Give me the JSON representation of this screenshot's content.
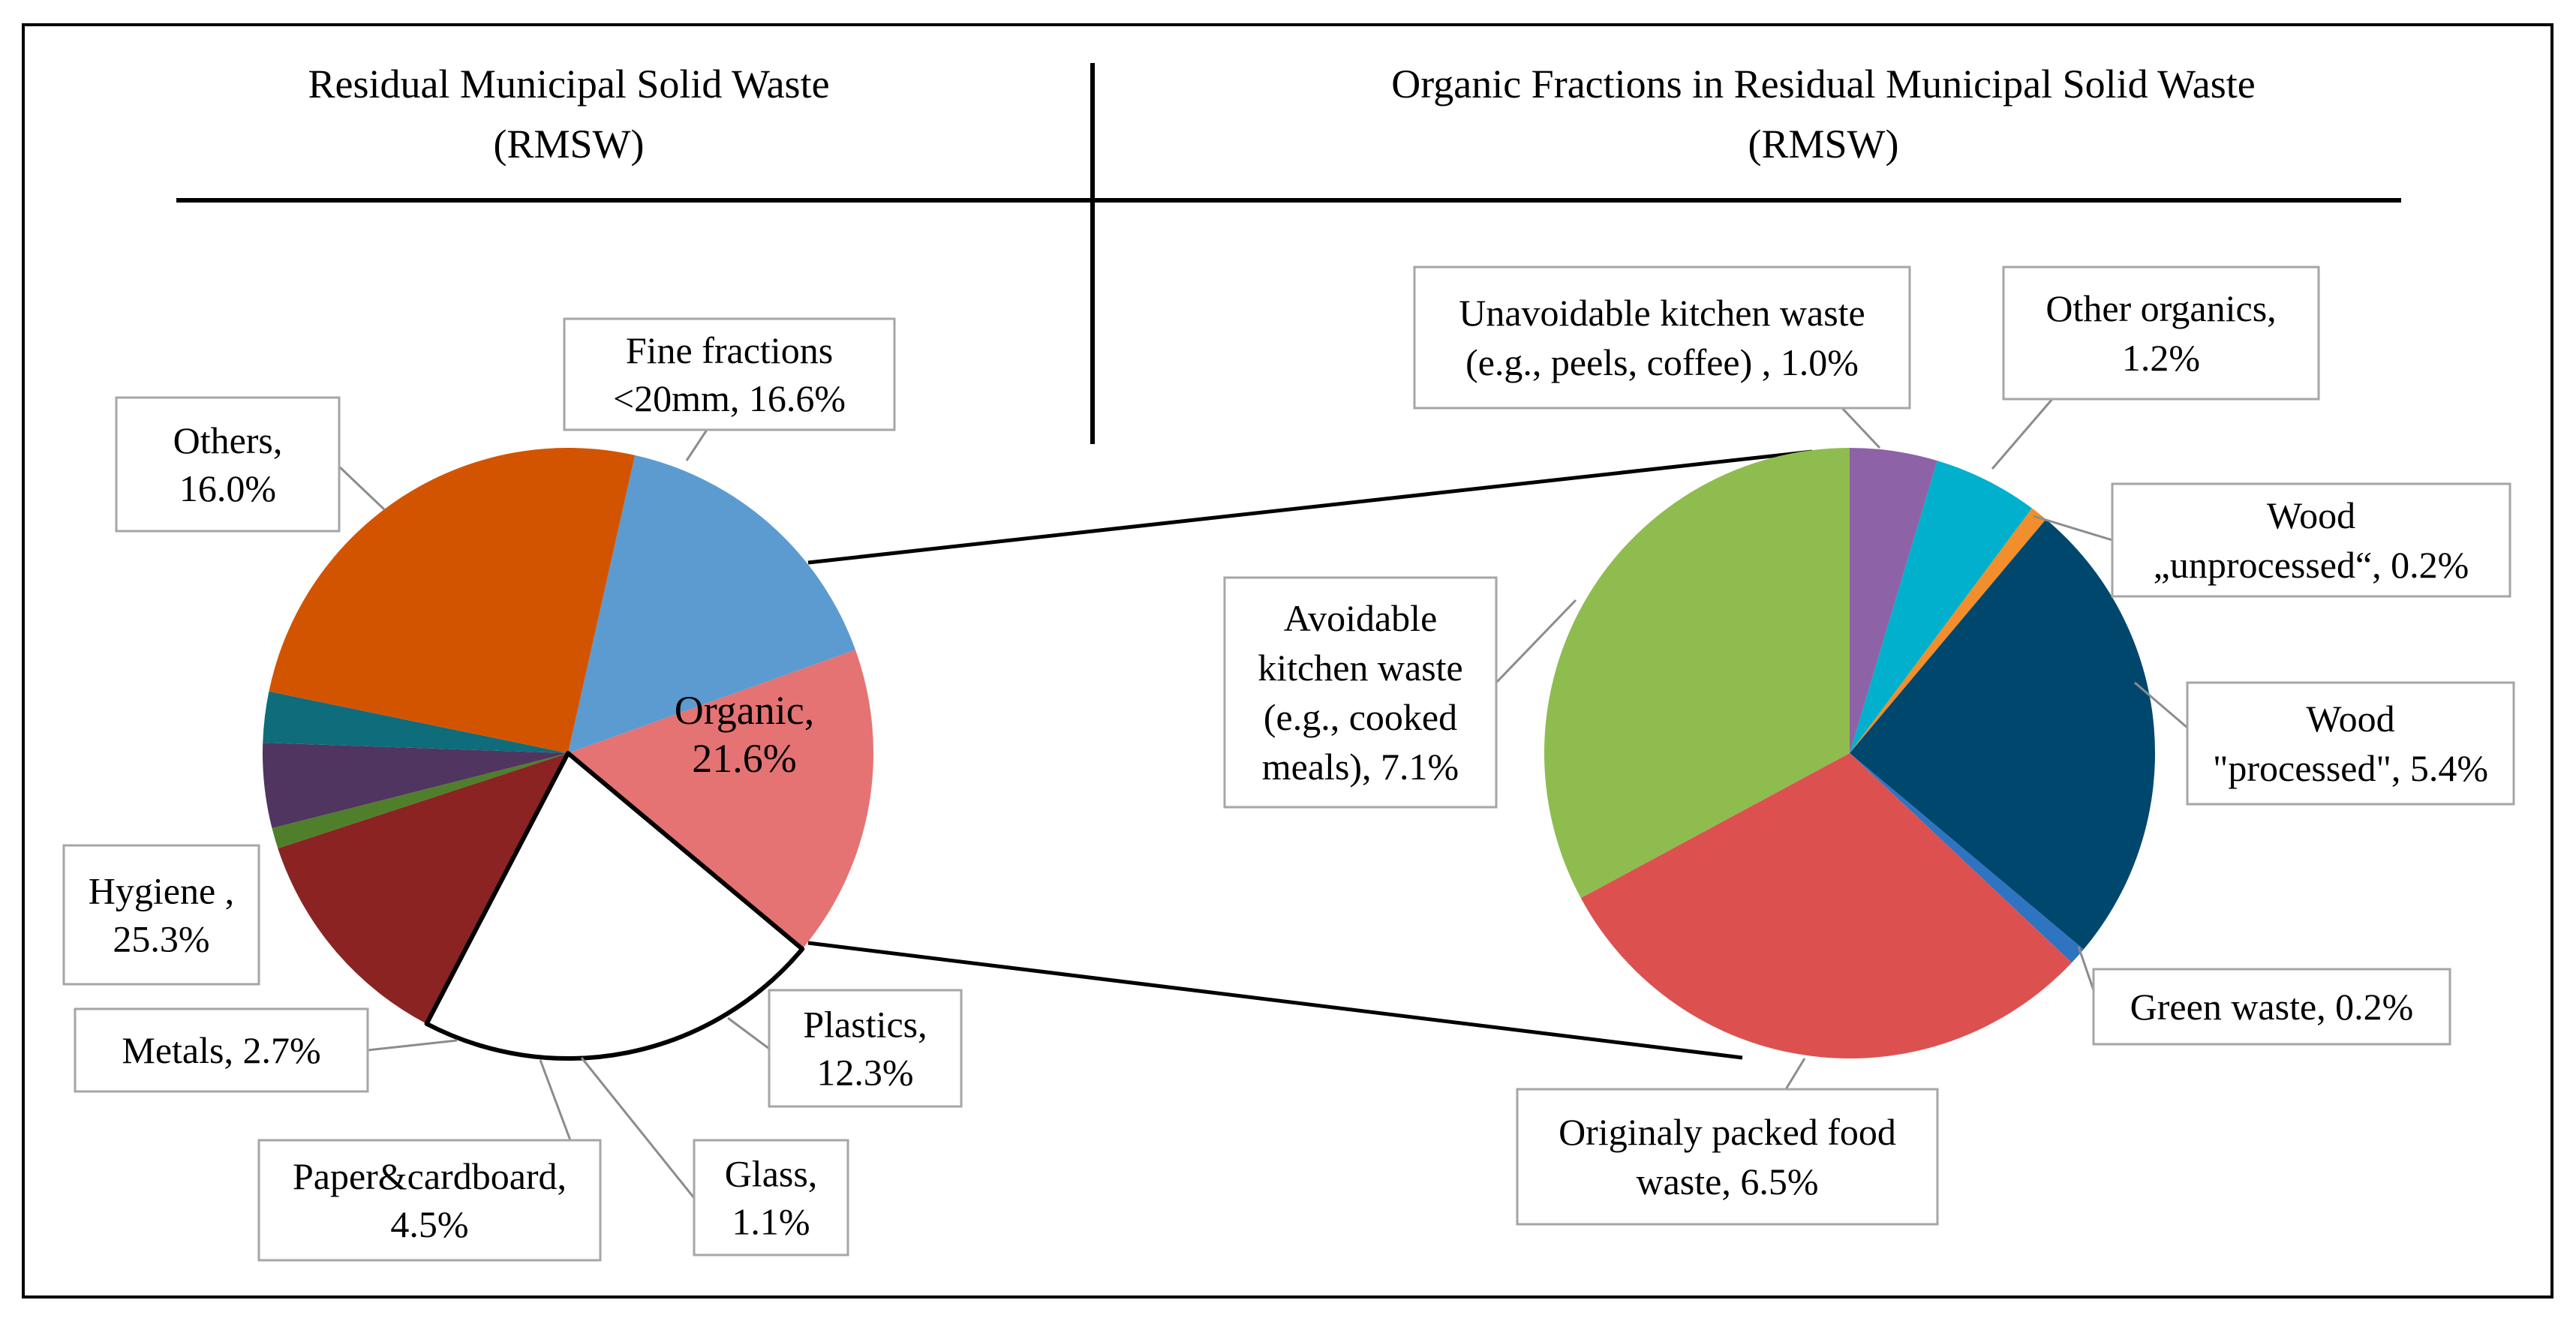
{
  "colors": {
    "frame": "#000000",
    "label_box_border": "#a6a6a6",
    "leader_line": "#8c8c8c"
  },
  "headers": {
    "left_line1": "Residual Municipal Solid Waste",
    "left_line2": "(RMSW)",
    "right_line1": "Organic Fractions in Residual Municipal Solid Waste",
    "right_line2": "(RMSW)"
  },
  "chart_data": [
    {
      "type": "pie",
      "title": "Residual Municipal Solid Waste (RMSW)",
      "slices": [
        {
          "key": "fine",
          "label": [
            "Fine fractions",
            "<20mm, 16.6%"
          ],
          "value": 16.6,
          "color": "#e57373"
        },
        {
          "key": "organic",
          "label": [
            "Organic,",
            "21.6%"
          ],
          "value": 21.6,
          "color": "#ffffff",
          "exploded_into_right_chart": true
        },
        {
          "key": "plastics",
          "label": [
            "Plastics,",
            "12.3%"
          ],
          "value": 12.3,
          "color": "#8b2323"
        },
        {
          "key": "glass",
          "label": [
            "Glass,",
            "1.1%"
          ],
          "value": 1.1,
          "color": "#4f7f2a"
        },
        {
          "key": "paper",
          "label": [
            "Paper&cardboard,",
            "4.5%"
          ],
          "value": 4.5,
          "color": "#503560"
        },
        {
          "key": "metals",
          "label": [
            "Metals, 2.7%"
          ],
          "value": 2.7,
          "color": "#0f6c7a"
        },
        {
          "key": "hygiene",
          "label": [
            "Hygiene ,",
            "25.3%"
          ],
          "value": 25.3,
          "color": "#d35400"
        },
        {
          "key": "others",
          "label": [
            "Others,",
            "16.0%"
          ],
          "value": 16.0,
          "color": "#5b9bd0"
        }
      ]
    },
    {
      "type": "pie",
      "title": "Organic Fractions in Residual Municipal Solid Waste (RMSW)",
      "slices": [
        {
          "key": "unavoidable",
          "label": [
            "Unavoidable kitchen waste",
            "(e.g., peels, coffee) , 1.0%"
          ],
          "value": 1.0,
          "color": "#8e62a6"
        },
        {
          "key": "other_organics",
          "label": [
            "Other organics,",
            "1.2%"
          ],
          "value": 1.2,
          "color": "#00b0cc"
        },
        {
          "key": "wood_unprocessed",
          "label": [
            "Wood",
            "„unprocessed“, 0.2%"
          ],
          "value": 0.2,
          "color": "#f28e2b"
        },
        {
          "key": "wood_processed",
          "label": [
            "Wood",
            "\"processed\", 5.4%"
          ],
          "value": 5.4,
          "color": "#00476e"
        },
        {
          "key": "green",
          "label": [
            "Green waste, 0.2%"
          ],
          "value": 0.2,
          "color": "#2e74c0"
        },
        {
          "key": "packed_food",
          "label": [
            "Originaly packed food",
            "waste, 6.5%"
          ],
          "value": 6.5,
          "color": "#dd5050"
        },
        {
          "key": "avoidable",
          "label": [
            "Avoidable",
            "kitchen waste",
            "(e.g., cooked",
            "meals), 7.1%"
          ],
          "value": 7.1,
          "color": "#8fbc4f"
        }
      ]
    }
  ]
}
